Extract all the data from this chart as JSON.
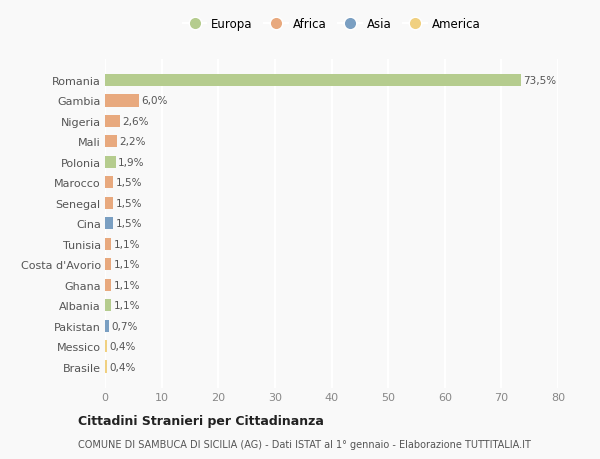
{
  "countries": [
    "Romania",
    "Gambia",
    "Nigeria",
    "Mali",
    "Polonia",
    "Marocco",
    "Senegal",
    "Cina",
    "Tunisia",
    "Costa d'Avorio",
    "Ghana",
    "Albania",
    "Pakistan",
    "Messico",
    "Brasile"
  ],
  "values": [
    73.5,
    6.0,
    2.6,
    2.2,
    1.9,
    1.5,
    1.5,
    1.5,
    1.1,
    1.1,
    1.1,
    1.1,
    0.7,
    0.4,
    0.4
  ],
  "labels": [
    "73,5%",
    "6,0%",
    "2,6%",
    "2,2%",
    "1,9%",
    "1,5%",
    "1,5%",
    "1,5%",
    "1,1%",
    "1,1%",
    "1,1%",
    "1,1%",
    "0,7%",
    "0,4%",
    "0,4%"
  ],
  "colors": [
    "#b5cc8e",
    "#e8a97e",
    "#e8a97e",
    "#e8a97e",
    "#b5cc8e",
    "#e8a97e",
    "#e8a97e",
    "#7a9fc2",
    "#e8a97e",
    "#e8a97e",
    "#e8a97e",
    "#b5cc8e",
    "#7a9fc2",
    "#f0d080",
    "#f0d080"
  ],
  "legend_labels": [
    "Europa",
    "Africa",
    "Asia",
    "America"
  ],
  "legend_colors": [
    "#b5cc8e",
    "#e8a97e",
    "#7a9fc2",
    "#f0d080"
  ],
  "title": "Cittadini Stranieri per Cittadinanza",
  "subtitle": "COMUNE DI SAMBUCA DI SICILIA (AG) - Dati ISTAT al 1° gennaio - Elaborazione TUTTITALIA.IT",
  "xlim": [
    0,
    80
  ],
  "xticks": [
    0,
    10,
    20,
    30,
    40,
    50,
    60,
    70,
    80
  ],
  "bg_color": "#f9f9f9",
  "grid_color": "#e8e8e8"
}
